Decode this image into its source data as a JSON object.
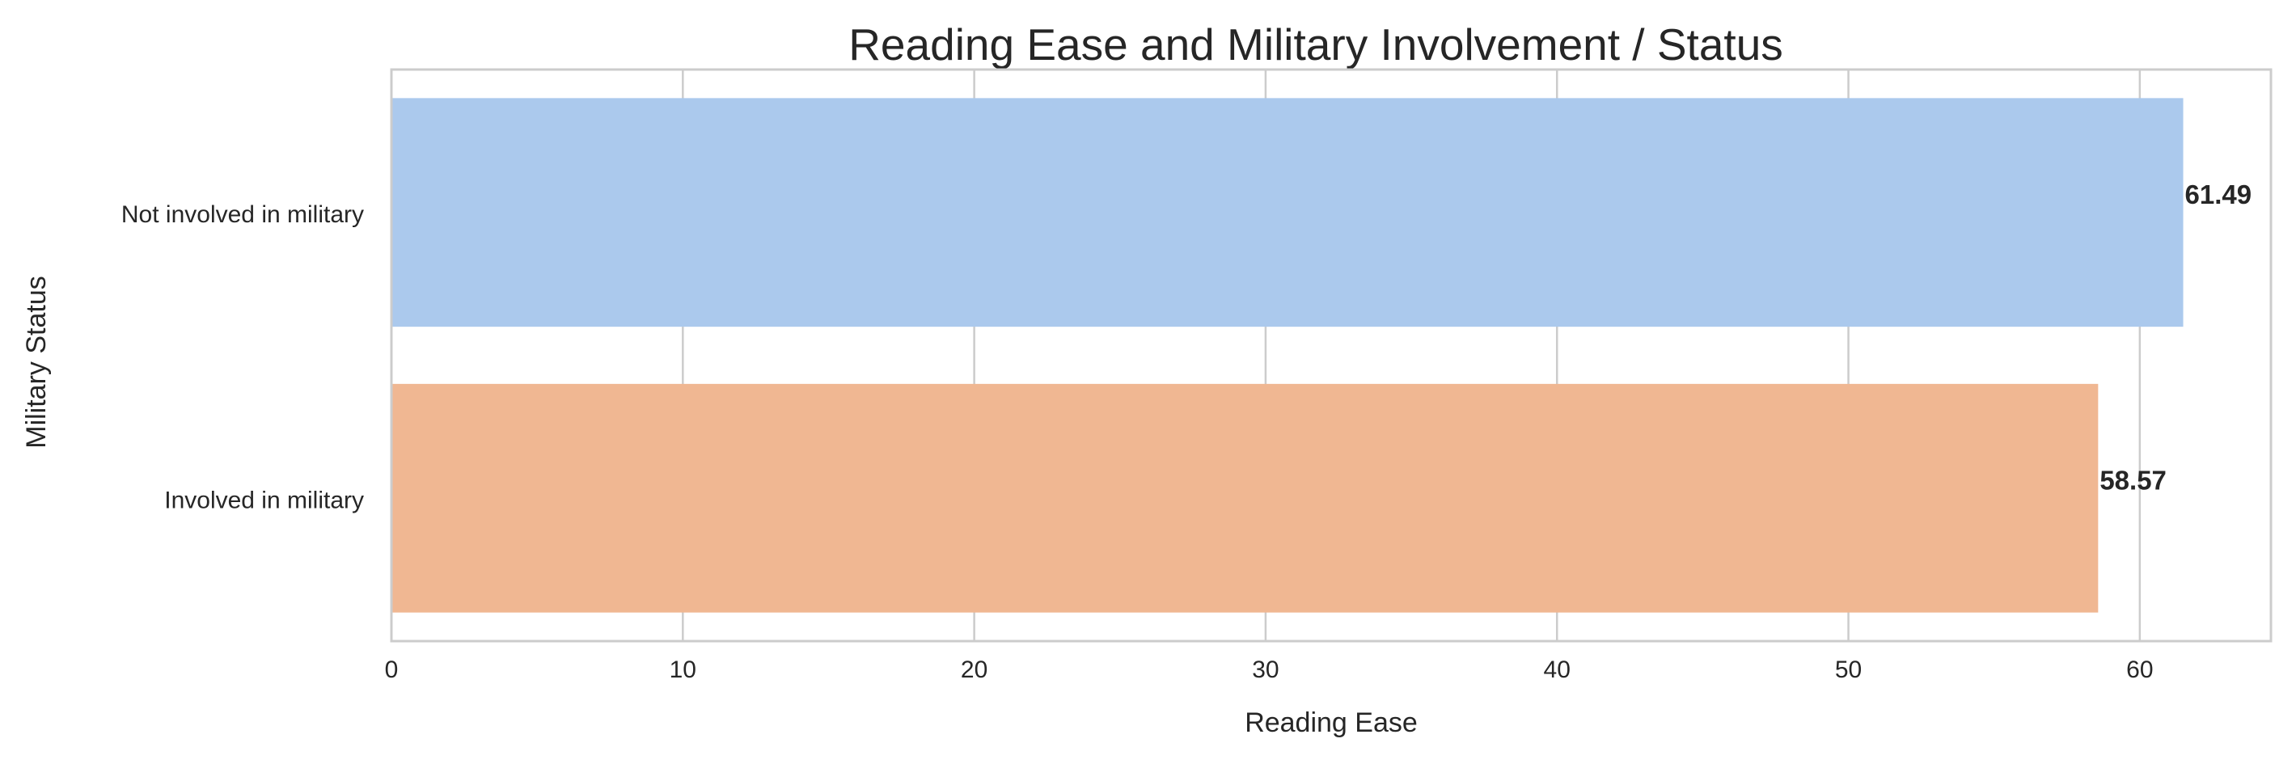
{
  "chart_data": {
    "type": "bar",
    "orientation": "horizontal",
    "title": "Reading Ease and Military Involvement / Status",
    "xlabel": "Reading Ease",
    "ylabel": "Military Status",
    "categories": [
      "Not involved in military",
      "Involved in military"
    ],
    "values": [
      61.49,
      58.57
    ],
    "data_labels": [
      "61.49",
      "58.57"
    ],
    "colors": [
      "#abc9ed",
      "#f0b792"
    ],
    "xlim": [
      0,
      64.5
    ],
    "xticks": [
      0,
      10,
      20,
      30,
      40,
      50,
      60
    ],
    "xtick_labels": [
      "0",
      "10",
      "20",
      "30",
      "40",
      "50",
      "60"
    ],
    "grid": true,
    "grid_axis": "x",
    "legend": "none"
  }
}
